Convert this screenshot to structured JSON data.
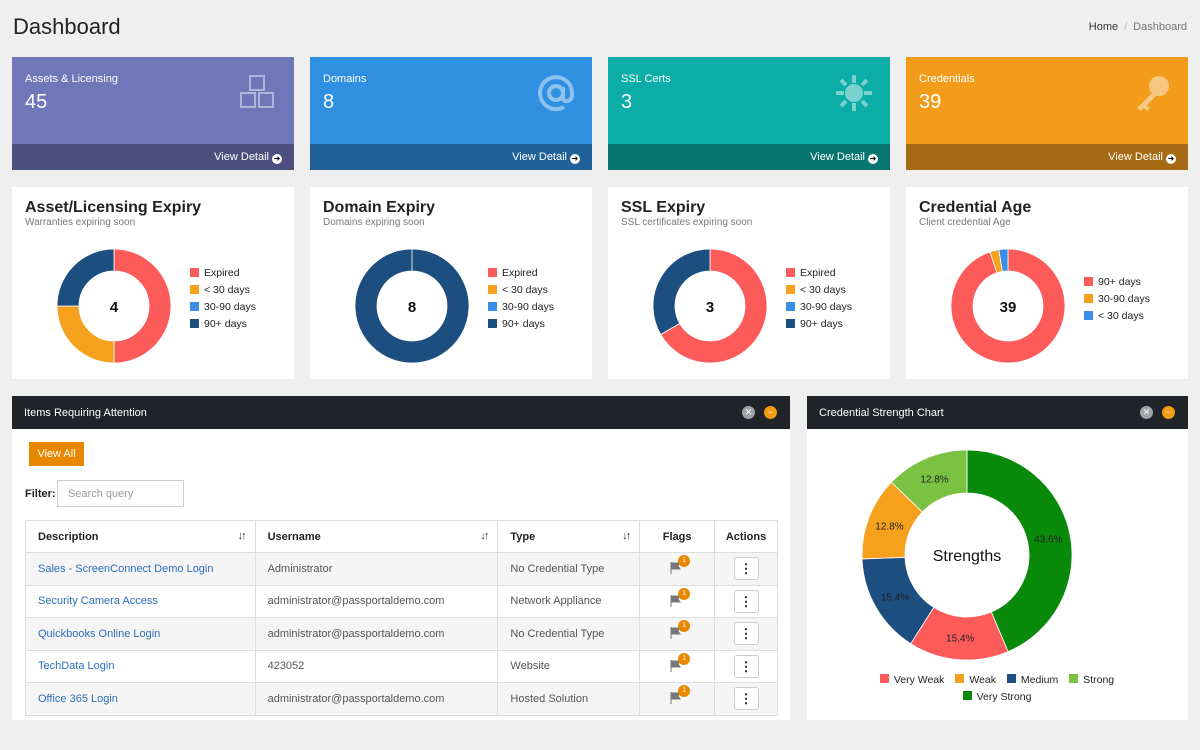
{
  "page": {
    "title": "Dashboard",
    "breadcrumb": [
      "Home",
      "Dashboard"
    ]
  },
  "stats": [
    {
      "label": "Assets & Licensing",
      "value": "45",
      "link": "View Detail",
      "icon": "cubes-icon",
      "color": "#7077b8"
    },
    {
      "label": "Domains",
      "value": "8",
      "link": "View Detail",
      "icon": "at-sign-icon",
      "color": "#2f8fe0"
    },
    {
      "label": "SSL Certs",
      "value": "3",
      "link": "View Detail",
      "icon": "sun-gear-icon",
      "color": "#0bada6"
    },
    {
      "label": "Credentials",
      "value": "39",
      "link": "View Detail",
      "icon": "key-icon",
      "color": "#f39c1c"
    }
  ],
  "colors": {
    "expired": "#fd5a5a",
    "lt30": "#f5a11d",
    "d30_90": "#3a8ee6",
    "d90plus": "#1d4e80",
    "very_weak": "#fd5a5a",
    "weak": "#f5a11d",
    "medium": "#1d4e80",
    "strong": "#7bc142",
    "very_strong": "#0a8a0a"
  },
  "expiry_cards": [
    {
      "title": "Asset/Licensing Expiry",
      "subtitle": "Warranties expiring soon",
      "total": "4",
      "legend": [
        "Expired",
        "< 30 days",
        "30-90 days",
        "90+ days"
      ],
      "segments": [
        {
          "name": "Expired",
          "value": 2,
          "color": "#fd5a5a"
        },
        {
          "name": "< 30 days",
          "value": 1,
          "color": "#f5a11d"
        },
        {
          "name": "30-90 days",
          "value": 0,
          "color": "#3a8ee6"
        },
        {
          "name": "90+ days",
          "value": 1,
          "color": "#1d4e80"
        }
      ]
    },
    {
      "title": "Domain Expiry",
      "subtitle": "Domains expiring soon",
      "total": "8",
      "legend": [
        "Expired",
        "< 30 days",
        "30-90 days",
        "90+ days"
      ],
      "segments": [
        {
          "name": "Expired",
          "value": 0,
          "color": "#fd5a5a"
        },
        {
          "name": "< 30 days",
          "value": 0,
          "color": "#f5a11d"
        },
        {
          "name": "30-90 days",
          "value": 0,
          "color": "#3a8ee6"
        },
        {
          "name": "90+ days",
          "value": 8,
          "color": "#1d4e80"
        }
      ]
    },
    {
      "title": "SSL Expiry",
      "subtitle": "SSL certificates expiring soon",
      "total": "3",
      "legend": [
        "Expired",
        "< 30 days",
        "30-90 days",
        "90+ days"
      ],
      "segments": [
        {
          "name": "Expired",
          "value": 2,
          "color": "#fd5a5a"
        },
        {
          "name": "< 30 days",
          "value": 0,
          "color": "#f5a11d"
        },
        {
          "name": "30-90 days",
          "value": 0,
          "color": "#3a8ee6"
        },
        {
          "name": "90+ days",
          "value": 1,
          "color": "#1d4e80"
        }
      ]
    },
    {
      "title": "Credential Age",
      "subtitle": "Client credential Age",
      "total": "39",
      "legend": [
        "90+ days",
        "30-90 days",
        "< 30 days"
      ],
      "segments": [
        {
          "name": "90+ days",
          "value": 37,
          "color": "#fd5a5a"
        },
        {
          "name": "30-90 days",
          "value": 1,
          "color": "#f5a11d"
        },
        {
          "name": "< 30 days",
          "value": 1,
          "color": "#3a8ee6"
        }
      ]
    }
  ],
  "attention": {
    "title": "Items Requiring Attention",
    "view_all": "View All",
    "filter_label": "Filter:",
    "filter_placeholder": "Search query",
    "columns": [
      "Description",
      "Username",
      "Type",
      "Flags",
      "Actions"
    ],
    "rows": [
      {
        "description": "Sales - ScreenConnect Demo Login",
        "username": "Administrator",
        "type": "No Credential Type",
        "flags": "1"
      },
      {
        "description": "Security Camera Access",
        "username": "administrator@passportaldemo.com",
        "type": "Network Appliance",
        "flags": "1"
      },
      {
        "description": "Quickbooks Online Login",
        "username": "administrator@passportaldemo.com",
        "type": "No Credential Type",
        "flags": "1"
      },
      {
        "description": "TechData Login",
        "username": "423052",
        "type": "Website",
        "flags": "1"
      },
      {
        "description": "Office 365 Login",
        "username": "administrator@passportaldemo.com",
        "type": "Hosted Solution",
        "flags": "1"
      }
    ],
    "action_glyph": "⋮"
  },
  "strength": {
    "title": "Credential Strength Chart"
  },
  "chart_data": {
    "type": "pie",
    "title": "Strengths",
    "categories": [
      "Very Weak",
      "Weak",
      "Medium",
      "Strong",
      "Very Strong"
    ],
    "values": [
      15.4,
      12.8,
      15.4,
      12.8,
      43.6
    ],
    "labels": [
      "15.4%",
      "12.8%",
      "15.4%",
      "12.8%",
      "43.6%"
    ],
    "colors": [
      "#fd5a5a",
      "#f5a11d",
      "#1d4e80",
      "#7bc142",
      "#0a8a0a"
    ],
    "legend": "bottom"
  }
}
